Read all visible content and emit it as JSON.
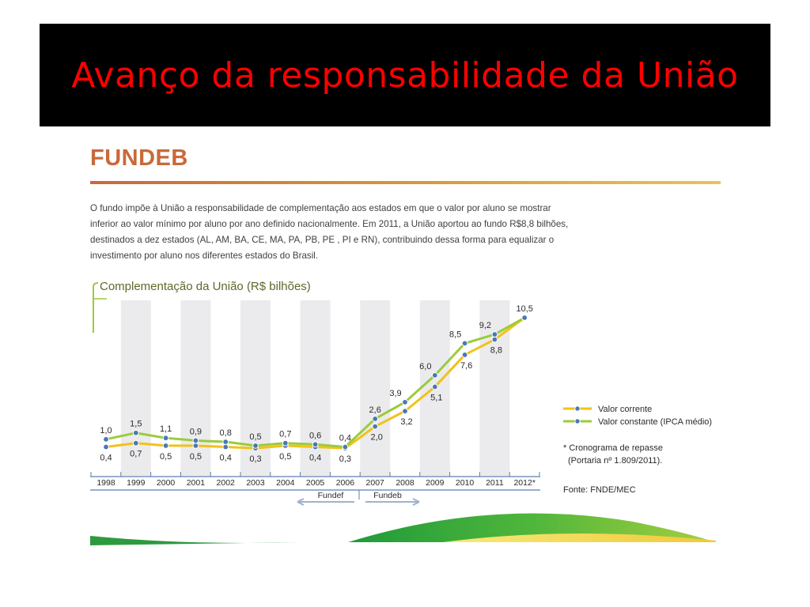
{
  "slide": {
    "title": "Avanço da responsabilidade da União",
    "section_title": "FUNDEB",
    "intro": "O fundo impõe à União a responsabilidade de complementação aos estados em que o valor por aluno se mostrar inferior ao valor mínimo por aluno por ano definido nacionalmente. Em 2011, a União aportou ao fundo R$8,8 bilhões, destinados a dez estados (AL, AM, BA, CE, MA, PA, PB, PE , PI e RN), contribuindo dessa forma para equalizar o investimento por aluno nos diferentes estados do Brasil."
  },
  "chart_data": {
    "type": "line",
    "title": "Complementação da União (R$ bilhões)",
    "categories": [
      "1998",
      "1999",
      "2000",
      "2001",
      "2002",
      "2003",
      "2004",
      "2005",
      "2006",
      "2007",
      "2008",
      "2009",
      "2010",
      "2011",
      "2012*"
    ],
    "series": [
      {
        "name": "Valor corrente",
        "color": "#f2c21a",
        "values": [
          0.4,
          0.7,
          0.5,
          0.5,
          0.4,
          0.3,
          0.5,
          0.4,
          0.3,
          2.0,
          3.2,
          5.1,
          7.6,
          8.8,
          10.5
        ],
        "labels": [
          "0,4",
          "0,7",
          "0,5",
          "0,5",
          "0,4",
          "0,3",
          "0,5",
          "0,4",
          "0,3",
          "2,0",
          "3,2",
          "5,1",
          "7,6",
          "8,8",
          ""
        ]
      },
      {
        "name": "Valor constante (IPCA médio)",
        "color": "#9ccb3b",
        "values": [
          1.0,
          1.5,
          1.1,
          0.9,
          0.8,
          0.5,
          0.7,
          0.6,
          0.4,
          2.6,
          3.9,
          6.0,
          8.5,
          9.2,
          10.5
        ],
        "labels": [
          "1,0",
          "1,5",
          "1,1",
          "0,9",
          "0,8",
          "0,5",
          "0,7",
          "0,6",
          "0,4",
          "2,6",
          "3,9",
          "6,0",
          "8,5",
          "9,2",
          "10,5"
        ]
      }
    ],
    "periods": [
      {
        "label": "Fundef"
      },
      {
        "label": "Fundeb"
      }
    ],
    "legend_position": "right",
    "footnote_lines": [
      "* Cronograma de repasse",
      "(Portaria nº 1.809/2011)."
    ],
    "source": "Fonte: FNDE/MEC"
  }
}
